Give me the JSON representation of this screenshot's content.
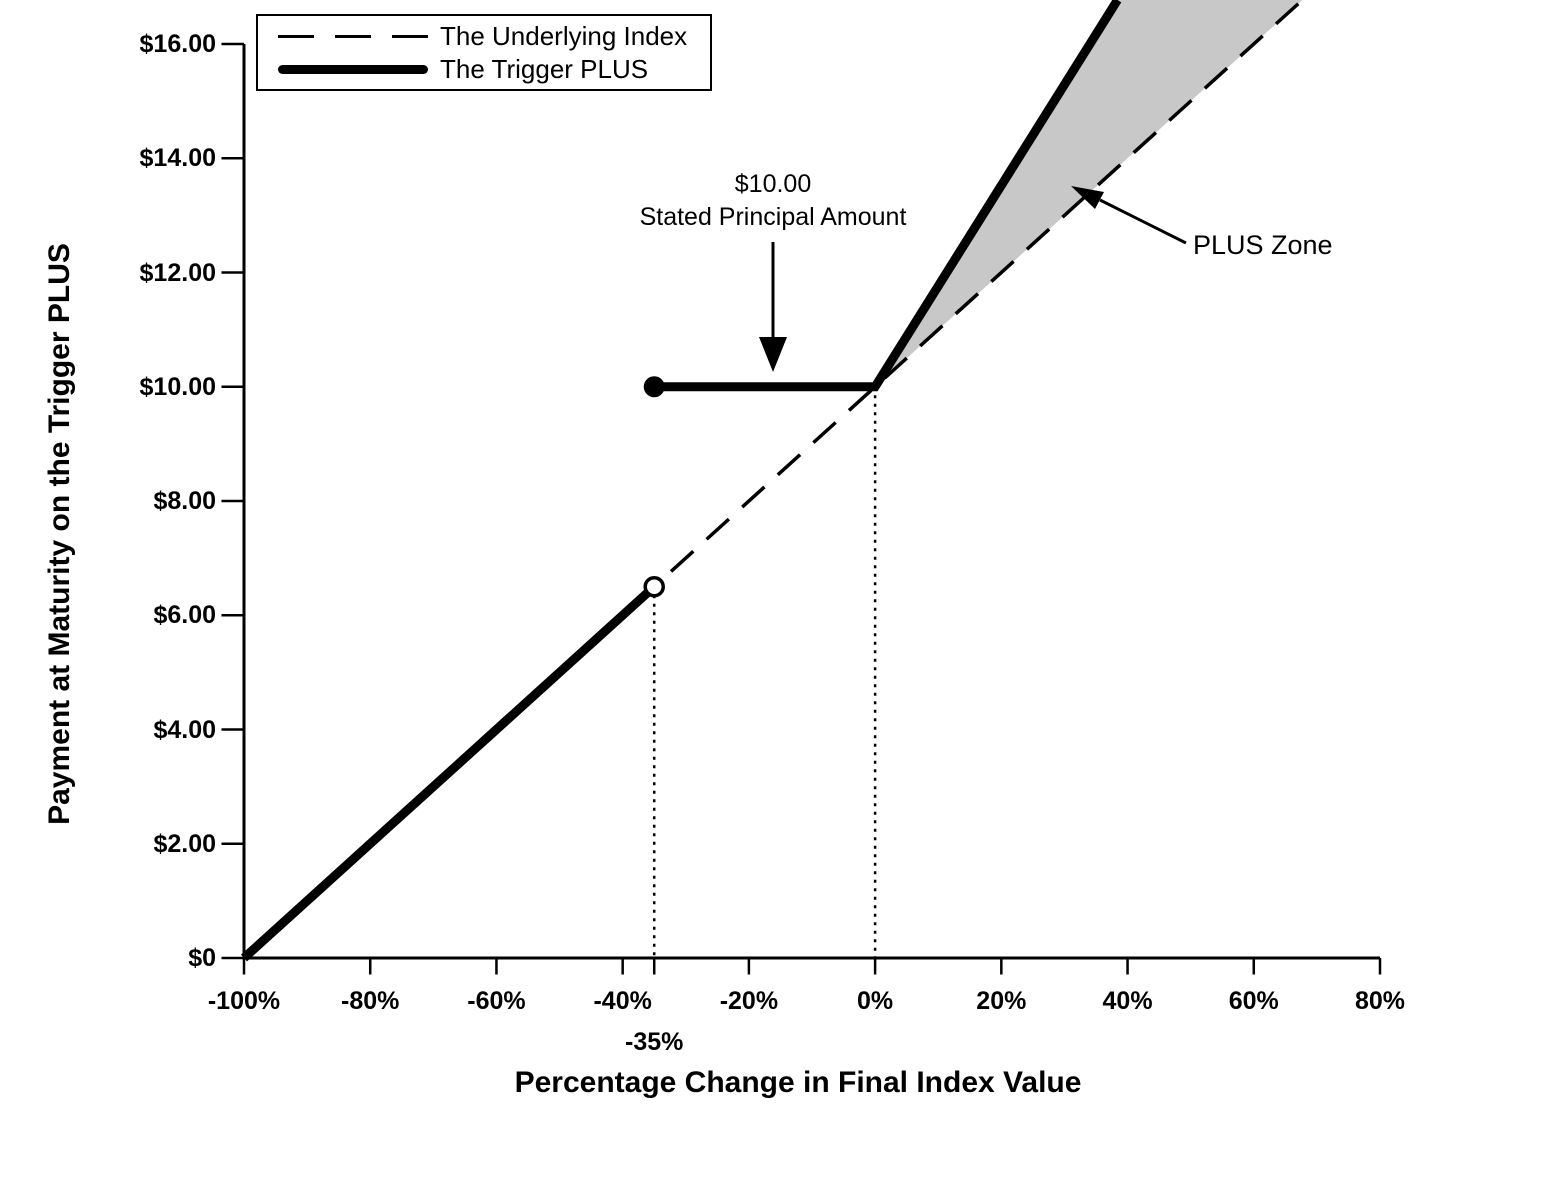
{
  "colors": {
    "ink": "#000000",
    "background": "#ffffff",
    "plus_zone_fill": "#c8c8c8"
  },
  "legend": {
    "items": [
      {
        "label": "The Underlying Index",
        "sample": "long-dash-line"
      },
      {
        "label": "The Trigger PLUS",
        "sample": "thick-solid-line"
      }
    ]
  },
  "annotations": {
    "stated_principal": {
      "line1": "$10.00",
      "line2": "Stated Principal Amount"
    },
    "plus_zone_label": "PLUS Zone"
  },
  "chart_data": {
    "type": "line",
    "xlabel": "Percentage Change in Final Index Value",
    "ylabel": "Payment at Maturity on the Trigger PLUS",
    "xlim": [
      -100,
      80
    ],
    "ylim": [
      0,
      16
    ],
    "grid": false,
    "legend_position": "top-left",
    "x_ticks": [
      {
        "value": -100,
        "label": "-100%"
      },
      {
        "value": -80,
        "label": "-80%"
      },
      {
        "value": -60,
        "label": "-60%"
      },
      {
        "value": -40,
        "label": "-40%"
      },
      {
        "value": -20,
        "label": "-20%"
      },
      {
        "value": 0,
        "label": "0%"
      },
      {
        "value": 20,
        "label": "20%"
      },
      {
        "value": 40,
        "label": "40%"
      },
      {
        "value": 60,
        "label": "60%"
      },
      {
        "value": 80,
        "label": "80%"
      }
    ],
    "x_extra_tick": {
      "value": -35,
      "label": "-35%"
    },
    "y_ticks": [
      {
        "value": 0,
        "label": "$0"
      },
      {
        "value": 2,
        "label": "$2.00"
      },
      {
        "value": 4,
        "label": "$4.00"
      },
      {
        "value": 6,
        "label": "$6.00"
      },
      {
        "value": 8,
        "label": "$8.00"
      },
      {
        "value": 10,
        "label": "$10.00"
      },
      {
        "value": 12,
        "label": "$12.00"
      },
      {
        "value": 14,
        "label": "$14.00"
      },
      {
        "value": 16,
        "label": "$16.00"
      }
    ],
    "series": [
      {
        "name": "The Underlying Index",
        "style": "dashed",
        "points": [
          [
            -100,
            0
          ],
          [
            67.7,
            16.77
          ]
        ]
      },
      {
        "name": "The Trigger PLUS",
        "style": "solid-thick",
        "segments": [
          {
            "points": [
              [
                -100,
                0
              ],
              [
                -35,
                6.5
              ]
            ],
            "end_marker": "open-circle"
          },
          {
            "points": [
              [
                -35,
                10
              ],
              [
                0,
                10
              ],
              [
                38.4,
                16.77
              ]
            ],
            "start_marker": "filled-circle"
          }
        ]
      }
    ],
    "markers": {
      "open_circle": [
        -35,
        6.5
      ],
      "filled_circle": [
        -35,
        10
      ]
    },
    "plus_zone_polygon": [
      [
        0,
        10
      ],
      [
        38.4,
        16.77
      ],
      [
        67.7,
        16.77
      ]
    ],
    "guide_lines": [
      {
        "x": -35,
        "y_from": 6.5,
        "y_to": 0
      },
      {
        "x": 0,
        "y_from": 10,
        "y_to": 0
      }
    ],
    "key_labels": {
      "trigger_level": "-35%",
      "stated_principal": "$10.00"
    }
  }
}
